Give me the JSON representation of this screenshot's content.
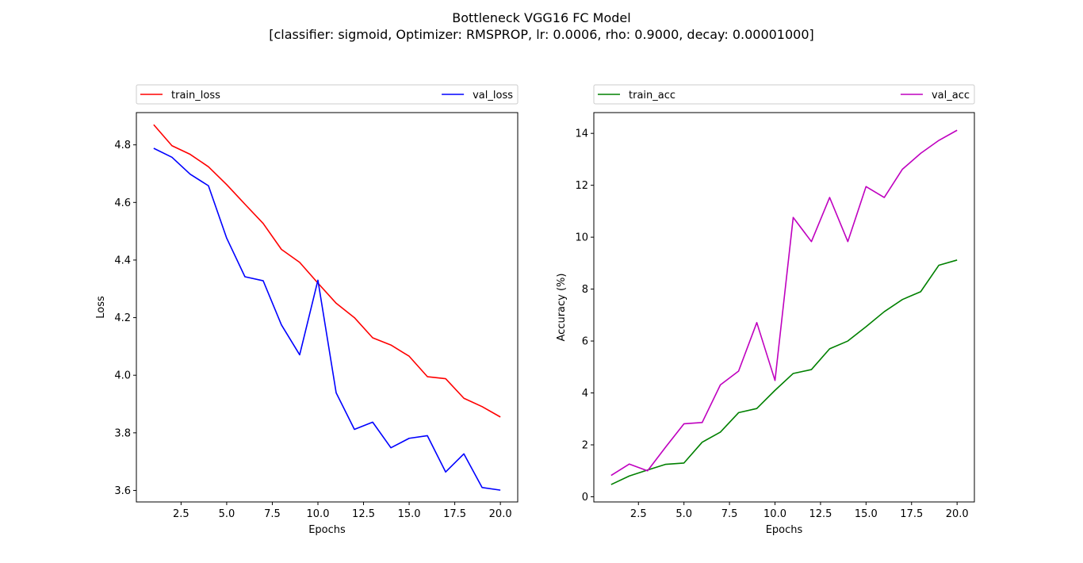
{
  "figure": {
    "title_line1": "Bottleneck VGG16 FC Model",
    "title_line2": "[classifier: sigmoid, Optimizer: RMSPROP, lr: 0.0006, rho: 0.9000, decay: 0.00001000]"
  },
  "chart_data": [
    {
      "type": "line",
      "xlabel": "Epochs",
      "ylabel": "Loss",
      "xlim": [
        0.05,
        20.95
      ],
      "ylim": [
        3.56,
        4.912
      ],
      "xticks": [
        2.5,
        5.0,
        7.5,
        10.0,
        12.5,
        15.0,
        17.5,
        20.0
      ],
      "xtick_labels": [
        "2.5",
        "5.0",
        "7.5",
        "10.0",
        "12.5",
        "15.0",
        "17.5",
        "20.0"
      ],
      "yticks": [
        3.6,
        3.8,
        4.0,
        4.2,
        4.4,
        4.6,
        4.8
      ],
      "ytick_labels": [
        "3.6",
        "3.8",
        "4.0",
        "4.2",
        "4.4",
        "4.6",
        "4.8"
      ],
      "grid": false,
      "legend": "top, above plot",
      "x": [
        1,
        2,
        3,
        4,
        5,
        6,
        7,
        8,
        9,
        10,
        11,
        12,
        13,
        14,
        15,
        16,
        17,
        18,
        19,
        20
      ],
      "series": [
        {
          "name": "train_loss",
          "color": "#ff0000",
          "values": [
            4.87,
            4.797,
            4.767,
            4.724,
            4.662,
            4.594,
            4.527,
            4.437,
            4.392,
            4.32,
            4.25,
            4.2,
            4.13,
            4.105,
            4.066,
            3.995,
            3.988,
            3.92,
            3.891,
            3.855
          ]
        },
        {
          "name": "val_loss",
          "color": "#0000ff",
          "values": [
            4.788,
            4.757,
            4.698,
            4.658,
            4.476,
            4.342,
            4.328,
            4.175,
            4.071,
            4.33,
            3.939,
            3.812,
            3.837,
            3.748,
            3.781,
            3.79,
            3.664,
            3.727,
            3.61,
            3.601
          ]
        }
      ]
    },
    {
      "type": "line",
      "xlabel": "Epochs",
      "ylabel": "Accuracy (%)",
      "xlim": [
        0.05,
        20.95
      ],
      "ylim": [
        -0.2,
        14.8
      ],
      "xticks": [
        2.5,
        5.0,
        7.5,
        10.0,
        12.5,
        15.0,
        17.5,
        20.0
      ],
      "xtick_labels": [
        "2.5",
        "5.0",
        "7.5",
        "10.0",
        "12.5",
        "15.0",
        "17.5",
        "20.0"
      ],
      "yticks": [
        0,
        2,
        4,
        6,
        8,
        10,
        12,
        14
      ],
      "ytick_labels": [
        "0",
        "2",
        "4",
        "6",
        "8",
        "10",
        "12",
        "14"
      ],
      "grid": false,
      "legend": "top, above plot",
      "x": [
        1,
        2,
        3,
        4,
        5,
        6,
        7,
        8,
        9,
        10,
        11,
        12,
        13,
        14,
        15,
        16,
        17,
        18,
        19,
        20
      ],
      "series": [
        {
          "name": "train_acc",
          "color": "#008000",
          "values": [
            0.47,
            0.8,
            1.03,
            1.25,
            1.3,
            2.1,
            2.49,
            3.24,
            3.4,
            4.1,
            4.75,
            4.9,
            5.7,
            6.0,
            6.55,
            7.13,
            7.6,
            7.9,
            8.92,
            9.12
          ]
        },
        {
          "name": "val_acc",
          "color": "#bf00bf",
          "values": [
            0.82,
            1.26,
            1.0,
            1.92,
            2.81,
            2.86,
            4.31,
            4.84,
            6.71,
            4.48,
            10.76,
            9.83,
            11.53,
            9.83,
            11.95,
            11.53,
            12.62,
            13.23,
            13.73,
            14.12
          ]
        }
      ]
    }
  ]
}
